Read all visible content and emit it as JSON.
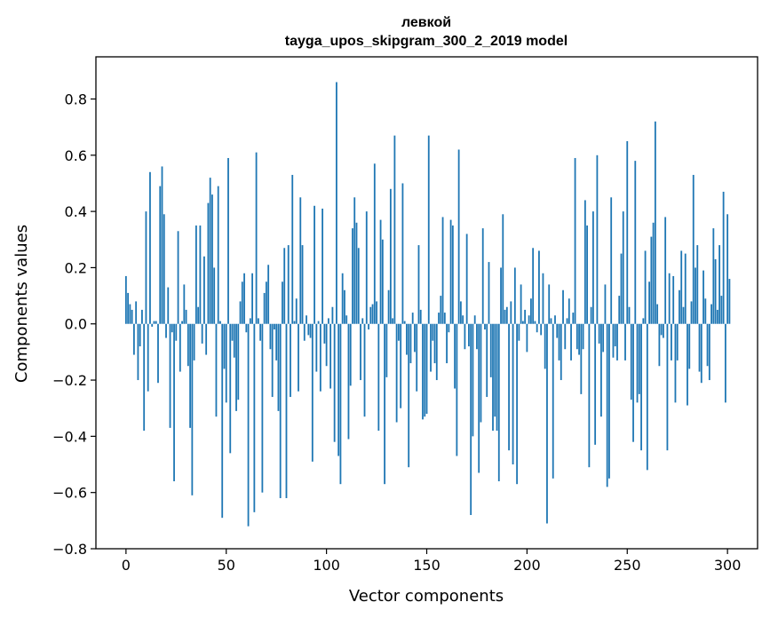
{
  "chart_data": {
    "type": "bar",
    "title_line1": "левкой",
    "title_line2": "tayga_upos_skipgram_300_2_2019 model",
    "xlabel": "Vector components",
    "ylabel": "Components values",
    "xlim": [
      -15,
      315
    ],
    "ylim": [
      -0.8,
      0.95
    ],
    "xticks": [
      0,
      50,
      100,
      150,
      200,
      250,
      300
    ],
    "xtick_labels": [
      "0",
      "50",
      "100",
      "150",
      "200",
      "250",
      "300"
    ],
    "yticks": [
      -0.8,
      -0.6,
      -0.4,
      -0.2,
      0.0,
      0.2,
      0.4,
      0.6,
      0.8
    ],
    "ytick_labels": [
      "−0.8",
      "−0.6",
      "−0.4",
      "−0.2",
      "0.0",
      "0.2",
      "0.4",
      "0.6",
      "0.8"
    ],
    "bar_color": "#1f77b4",
    "values": [
      0.17,
      0.11,
      0.07,
      0.05,
      -0.11,
      0.08,
      -0.2,
      -0.08,
      0.05,
      -0.38,
      0.4,
      -0.24,
      0.54,
      -0.01,
      0.01,
      0.01,
      -0.21,
      0.49,
      0.56,
      0.39,
      -0.05,
      0.13,
      -0.37,
      -0.03,
      -0.56,
      -0.06,
      0.33,
      -0.17,
      0.01,
      0.14,
      0.05,
      -0.15,
      -0.37,
      -0.61,
      -0.13,
      0.35,
      0.06,
      0.35,
      -0.07,
      0.24,
      -0.11,
      0.43,
      0.52,
      0.46,
      0.2,
      -0.33,
      0.49,
      0.01,
      -0.69,
      -0.16,
      -0.28,
      0.59,
      -0.46,
      -0.06,
      -0.12,
      -0.31,
      -0.27,
      0.08,
      0.15,
      0.18,
      -0.03,
      -0.72,
      0.02,
      0.18,
      -0.67,
      0.61,
      0.02,
      -0.06,
      -0.6,
      0.11,
      0.15,
      0.21,
      -0.09,
      -0.26,
      -0.02,
      -0.13,
      -0.31,
      -0.62,
      0.15,
      0.27,
      -0.62,
      0.28,
      -0.26,
      0.53,
      0.01,
      0.09,
      -0.24,
      0.45,
      0.28,
      -0.06,
      0.03,
      -0.04,
      -0.05,
      -0.49,
      0.42,
      -0.17,
      0.01,
      -0.24,
      0.41,
      -0.07,
      -0.15,
      0.02,
      -0.23,
      0.06,
      -0.42,
      0.86,
      -0.47,
      -0.57,
      0.18,
      0.12,
      0.03,
      -0.41,
      -0.22,
      0.34,
      0.45,
      0.36,
      0.27,
      -0.2,
      0.02,
      -0.33,
      0.4,
      -0.02,
      0.06,
      0.07,
      0.57,
      0.08,
      -0.38,
      0.37,
      0.3,
      -0.57,
      -0.19,
      0.12,
      0.48,
      0.02,
      0.67,
      -0.35,
      -0.06,
      -0.3,
      0.5,
      0.01,
      -0.11,
      -0.51,
      -0.14,
      0.04,
      -0.1,
      -0.24,
      0.28,
      0.05,
      -0.34,
      -0.33,
      -0.32,
      0.67,
      -0.17,
      -0.06,
      -0.14,
      -0.2,
      0.04,
      0.1,
      0.38,
      0.04,
      -0.14,
      -0.03,
      0.37,
      0.35,
      -0.23,
      -0.47,
      0.62,
      0.08,
      0.03,
      -0.09,
      0.32,
      -0.08,
      -0.68,
      -0.4,
      0.03,
      -0.09,
      -0.53,
      -0.35,
      0.34,
      -0.02,
      -0.26,
      0.22,
      -0.19,
      -0.38,
      -0.33,
      -0.38,
      -0.56,
      0.2,
      0.39,
      0.05,
      0.06,
      -0.45,
      0.08,
      -0.5,
      0.2,
      -0.57,
      -0.06,
      0.14,
      0.01,
      0.05,
      -0.1,
      0.03,
      0.09,
      0.27,
      0.01,
      -0.03,
      0.26,
      -0.04,
      0.18,
      -0.16,
      -0.71,
      0.14,
      0.02,
      -0.55,
      0.03,
      -0.05,
      -0.13,
      -0.2,
      0.12,
      -0.09,
      0.02,
      0.09,
      -0.13,
      0.04,
      0.59,
      -0.09,
      -0.11,
      -0.25,
      -0.09,
      0.44,
      0.35,
      -0.51,
      0.06,
      0.4,
      -0.43,
      0.6,
      -0.07,
      -0.33,
      -0.1,
      0.14,
      -0.58,
      -0.55,
      0.45,
      -0.12,
      -0.08,
      -0.13,
      0.1,
      0.25,
      0.4,
      -0.13,
      0.65,
      0.06,
      -0.27,
      -0.42,
      0.58,
      -0.28,
      -0.25,
      -0.45,
      0.02,
      0.26,
      -0.52,
      0.15,
      0.31,
      0.36,
      0.72,
      0.07,
      -0.15,
      -0.04,
      -0.05,
      0.38,
      -0.45,
      0.18,
      -0.13,
      0.17,
      -0.28,
      -0.13,
      0.12,
      0.26,
      0.06,
      0.25,
      -0.29,
      -0.16,
      0.08,
      0.53,
      0.2,
      0.28,
      -0.17,
      -0.21,
      0.19,
      0.09,
      -0.15,
      -0.2,
      0.07,
      0.34,
      0.23,
      0.05,
      0.28,
      0.1,
      0.47,
      -0.28,
      0.39,
      0.16
    ]
  }
}
